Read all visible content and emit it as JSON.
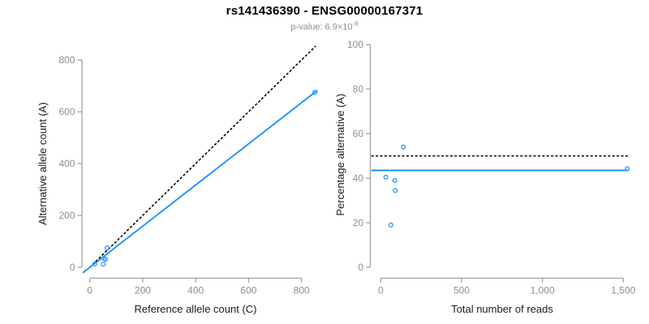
{
  "header": {
    "title": "rs141436390 - ENSG00000167371",
    "subtitle_base": "p-value: 6.9×10",
    "subtitle_exponent": "-9"
  },
  "colors": {
    "marker_blue": "#1E90FF",
    "fit_line_blue": "#1E90FF",
    "reference_line_black": "#000000",
    "axis_line_gray": "#9b9b9b",
    "tick_label_gray": "#8e8e8e",
    "axis_title_color": "#1a1a1a",
    "subtitle_gray": "#8e8e8e",
    "title_color": "#000000"
  },
  "chart_data": [
    {
      "type": "scatter",
      "panel": "left",
      "xlabel": "Reference allele count (C)",
      "ylabel": "Alternative allele count (A)",
      "xlim": [
        0,
        800
      ],
      "ylim": [
        0,
        800
      ],
      "xticks": [
        0,
        200,
        400,
        600,
        800
      ],
      "xtick_labels": [
        "0",
        "200",
        "400",
        "600",
        "800"
      ],
      "yticks": [
        0,
        200,
        400,
        600,
        800
      ],
      "ytick_labels": [
        "0",
        "200",
        "400",
        "600",
        "800"
      ],
      "grid": false,
      "legend": "none",
      "points": [
        [
          19,
          13
        ],
        [
          51,
          12
        ],
        [
          53,
          34
        ],
        [
          59,
          31
        ],
        [
          65,
          75
        ],
        [
          850,
          675
        ]
      ],
      "lines": [
        {
          "name": "identity-line",
          "style": "dotted",
          "color": "#000000",
          "kind": "ab",
          "slope": 1,
          "intercept": 0,
          "x_range": [
            0,
            852
          ]
        },
        {
          "name": "regression-line",
          "style": "solid",
          "color": "#1E90FF",
          "kind": "ab",
          "slope": 0.794,
          "intercept": 0,
          "x_range": [
            -25,
            858
          ]
        }
      ]
    },
    {
      "type": "scatter",
      "panel": "right",
      "xlabel": "Total number of reads",
      "ylabel": "Percentage alternative (A)",
      "xlim": [
        0,
        1500
      ],
      "ylim": [
        0,
        100
      ],
      "xticks": [
        0,
        500,
        1000,
        1500
      ],
      "xtick_labels": [
        "0",
        "500",
        "1,000",
        "1,500"
      ],
      "yticks": [
        0,
        20,
        40,
        60,
        80,
        100
      ],
      "ytick_labels": [
        "0",
        "20",
        "40",
        "60",
        "80",
        "100"
      ],
      "grid": false,
      "legend": "none",
      "points": [
        [
          32,
          40.5
        ],
        [
          63,
          19
        ],
        [
          87,
          39
        ],
        [
          90,
          34.5
        ],
        [
          140,
          54
        ],
        [
          1525,
          44.3
        ]
      ],
      "lines": [
        {
          "name": "expected-50pct-line",
          "style": "dotted",
          "color": "#000000",
          "kind": "h",
          "y": 50,
          "x_range": [
            -55,
            1540
          ]
        },
        {
          "name": "mean-percentage-line",
          "style": "solid",
          "color": "#1E90FF",
          "kind": "h",
          "y": 43.5,
          "x_range": [
            -55,
            1528
          ]
        }
      ]
    }
  ]
}
